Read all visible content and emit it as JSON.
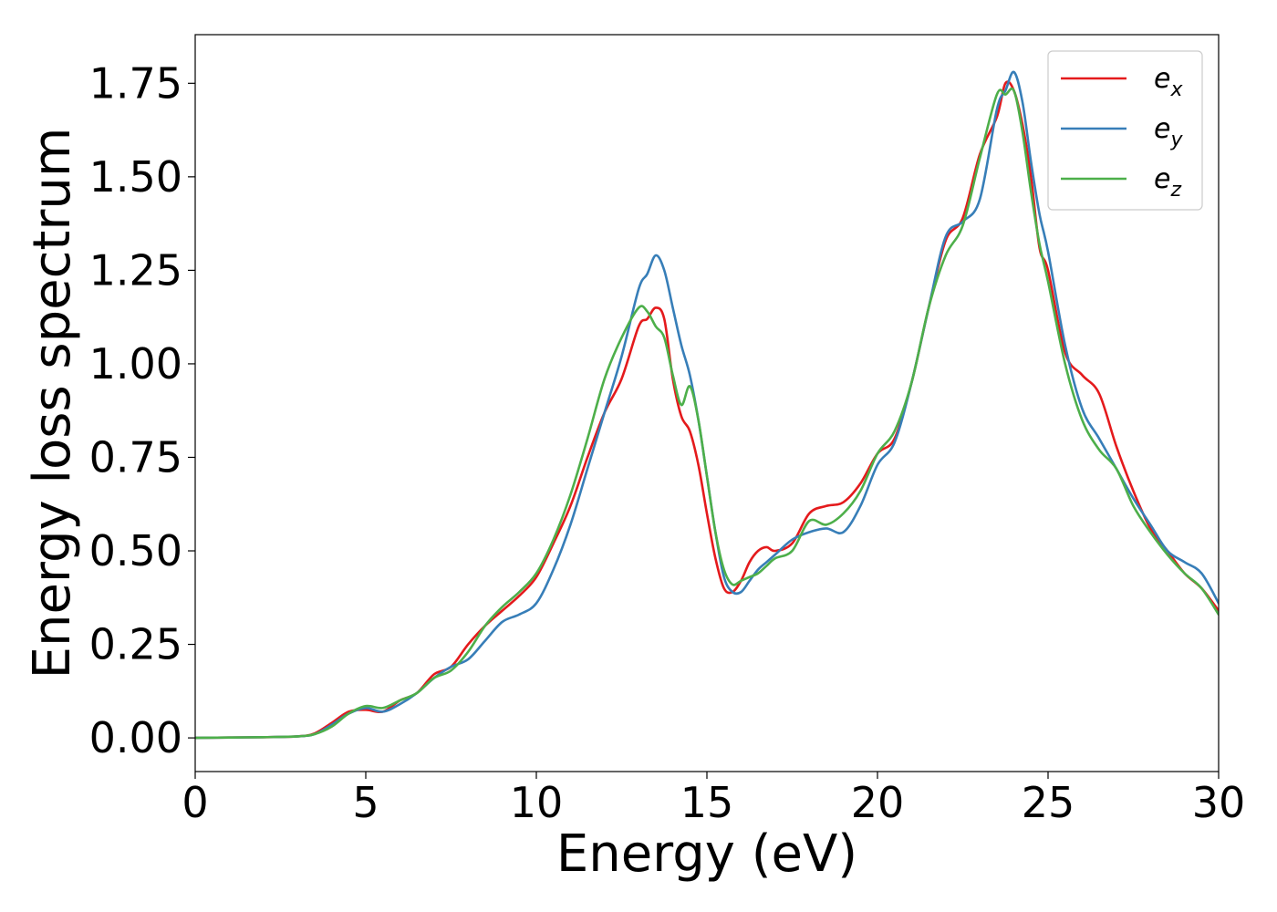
{
  "chart_data": {
    "type": "line",
    "title": "",
    "xlabel": "Energy (eV)",
    "ylabel": "Energy loss spectrum",
    "xlim": [
      0,
      30
    ],
    "ylim": [
      -0.09,
      1.88
    ],
    "xticks": [
      0,
      5,
      10,
      15,
      20,
      25,
      30
    ],
    "xtick_labels": [
      "0",
      "5",
      "10",
      "15",
      "20",
      "25",
      "30"
    ],
    "yticks": [
      0.0,
      0.25,
      0.5,
      0.75,
      1.0,
      1.25,
      1.5,
      1.75
    ],
    "ytick_labels": [
      "0.00",
      "0.25",
      "0.50",
      "0.75",
      "1.00",
      "1.25",
      "1.50",
      "1.75"
    ],
    "grid": false,
    "legend_position": "top-right",
    "series": [
      {
        "name": "e_x",
        "legend_base": "e",
        "legend_sub": "x",
        "color": "#e41a1c",
        "x": [
          0,
          1,
          2,
          3,
          3.5,
          4,
          4.5,
          5,
          5.5,
          6,
          6.5,
          7,
          7.5,
          8,
          8.5,
          9,
          9.5,
          10,
          10.5,
          11,
          11.5,
          12,
          12.5,
          13,
          13.25,
          13.5,
          13.75,
          14,
          14.25,
          14.5,
          14.75,
          15,
          15.25,
          15.5,
          15.75,
          16,
          16.25,
          16.5,
          16.75,
          17,
          17.5,
          18,
          18.5,
          19,
          19.5,
          20,
          20.5,
          21,
          21.5,
          22,
          22.5,
          23,
          23.5,
          23.75,
          24,
          24.25,
          24.5,
          24.75,
          25,
          25.5,
          26,
          26.5,
          27,
          27.5,
          28,
          28.5,
          29,
          29.5,
          30
        ],
        "y": [
          0,
          0.001,
          0.002,
          0.004,
          0.012,
          0.04,
          0.07,
          0.075,
          0.07,
          0.1,
          0.12,
          0.17,
          0.19,
          0.25,
          0.3,
          0.34,
          0.38,
          0.43,
          0.52,
          0.62,
          0.75,
          0.87,
          0.96,
          1.1,
          1.12,
          1.15,
          1.12,
          0.96,
          0.86,
          0.82,
          0.73,
          0.6,
          0.48,
          0.4,
          0.39,
          0.42,
          0.47,
          0.5,
          0.51,
          0.5,
          0.52,
          0.6,
          0.62,
          0.63,
          0.68,
          0.76,
          0.8,
          0.95,
          1.15,
          1.33,
          1.39,
          1.56,
          1.66,
          1.75,
          1.73,
          1.64,
          1.5,
          1.31,
          1.25,
          1.03,
          0.97,
          0.92,
          0.78,
          0.66,
          0.56,
          0.5,
          0.44,
          0.4,
          0.34
        ]
      },
      {
        "name": "e_y",
        "legend_base": "e",
        "legend_sub": "y",
        "color": "#377eb8",
        "x": [
          0,
          1,
          2,
          3,
          3.5,
          4,
          4.5,
          5,
          5.5,
          6,
          6.5,
          7,
          7.5,
          8,
          8.5,
          9,
          9.5,
          10,
          10.5,
          11,
          11.5,
          12,
          12.5,
          13,
          13.25,
          13.5,
          13.75,
          14,
          14.25,
          14.5,
          14.75,
          15,
          15.25,
          15.5,
          15.75,
          16,
          16.25,
          16.5,
          16.75,
          17,
          17.5,
          18,
          18.5,
          19,
          19.5,
          20,
          20.5,
          21,
          21.5,
          22,
          22.5,
          23,
          23.5,
          23.75,
          24,
          24.25,
          24.5,
          24.75,
          25,
          25.5,
          26,
          26.5,
          27,
          27.5,
          28,
          28.5,
          29,
          29.5,
          30
        ],
        "y": [
          0,
          0.001,
          0.002,
          0.004,
          0.01,
          0.035,
          0.065,
          0.08,
          0.07,
          0.09,
          0.12,
          0.16,
          0.19,
          0.21,
          0.26,
          0.31,
          0.33,
          0.36,
          0.45,
          0.57,
          0.72,
          0.87,
          1.02,
          1.2,
          1.24,
          1.29,
          1.25,
          1.15,
          1.05,
          0.97,
          0.85,
          0.7,
          0.55,
          0.43,
          0.39,
          0.39,
          0.42,
          0.45,
          0.47,
          0.49,
          0.53,
          0.55,
          0.56,
          0.55,
          0.62,
          0.73,
          0.79,
          0.95,
          1.15,
          1.34,
          1.38,
          1.44,
          1.68,
          1.73,
          1.78,
          1.7,
          1.54,
          1.4,
          1.3,
          1.05,
          0.88,
          0.8,
          0.72,
          0.64,
          0.57,
          0.5,
          0.47,
          0.44,
          0.36
        ]
      },
      {
        "name": "e_z",
        "legend_base": "e",
        "legend_sub": "z",
        "color": "#4daf4a",
        "x": [
          0,
          1,
          2,
          3,
          3.5,
          4,
          4.5,
          5,
          5.5,
          6,
          6.5,
          7,
          7.5,
          8,
          8.5,
          9,
          9.5,
          10,
          10.5,
          11,
          11.5,
          12,
          12.5,
          13,
          13.25,
          13.5,
          13.75,
          14,
          14.25,
          14.5,
          14.75,
          15,
          15.25,
          15.5,
          15.75,
          16,
          16.25,
          16.5,
          16.75,
          17,
          17.5,
          18,
          18.5,
          19,
          19.5,
          20,
          20.5,
          21,
          21.5,
          22,
          22.5,
          23,
          23.5,
          23.75,
          24,
          24.25,
          24.5,
          24.75,
          25,
          25.5,
          26,
          26.5,
          27,
          27.5,
          28,
          28.5,
          29,
          29.5,
          30
        ],
        "y": [
          0,
          0.001,
          0.002,
          0.004,
          0.01,
          0.03,
          0.065,
          0.085,
          0.08,
          0.1,
          0.12,
          0.16,
          0.18,
          0.23,
          0.3,
          0.35,
          0.39,
          0.44,
          0.53,
          0.65,
          0.8,
          0.96,
          1.07,
          1.15,
          1.14,
          1.1,
          1.07,
          0.97,
          0.89,
          0.94,
          0.85,
          0.7,
          0.55,
          0.45,
          0.41,
          0.42,
          0.43,
          0.44,
          0.46,
          0.48,
          0.5,
          0.58,
          0.57,
          0.6,
          0.66,
          0.76,
          0.82,
          0.95,
          1.15,
          1.29,
          1.37,
          1.55,
          1.72,
          1.72,
          1.73,
          1.62,
          1.46,
          1.32,
          1.22,
          1.0,
          0.85,
          0.77,
          0.72,
          0.62,
          0.55,
          0.49,
          0.44,
          0.4,
          0.33
        ]
      }
    ]
  }
}
